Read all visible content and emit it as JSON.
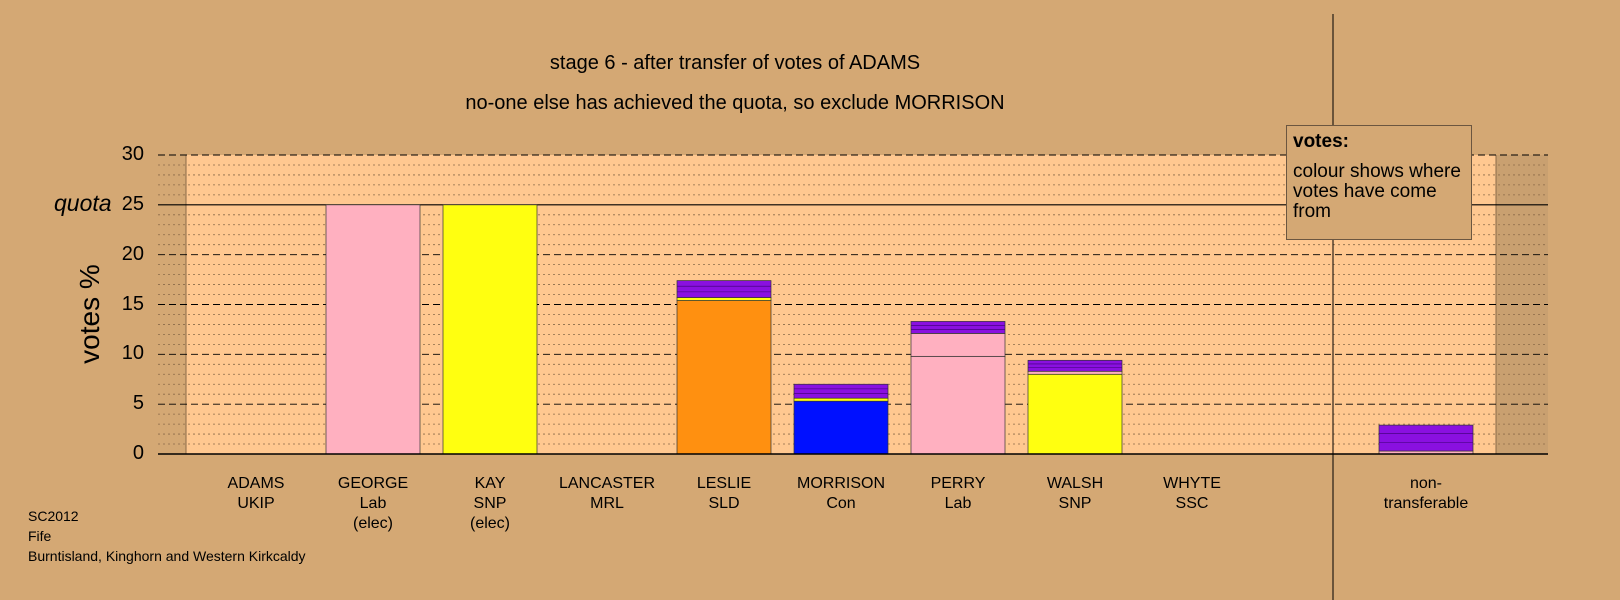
{
  "chart_data": {
    "type": "bar",
    "title": "stage 6 - after transfer of votes of ADAMS",
    "subtitle": "no-one else has achieved the quota, so exclude MORRISON",
    "ylabel": "votes %",
    "ylim": [
      0,
      30
    ],
    "yticks": [
      "0",
      "5",
      "10",
      "15",
      "20",
      "25",
      "30"
    ],
    "quota": 25,
    "quota_label": "quota",
    "categories": [
      {
        "name": "ADAMS",
        "party": "UKIP",
        "note": ""
      },
      {
        "name": "GEORGE",
        "party": "Lab",
        "note": "(elec)"
      },
      {
        "name": "KAY",
        "party": "SNP",
        "note": "(elec)"
      },
      {
        "name": "LANCASTER",
        "party": "MRL",
        "note": ""
      },
      {
        "name": "LESLIE",
        "party": "SLD",
        "note": ""
      },
      {
        "name": "MORRISON",
        "party": "Con",
        "note": ""
      },
      {
        "name": "PERRY",
        "party": "Lab",
        "note": ""
      },
      {
        "name": "WALSH",
        "party": "SNP",
        "note": ""
      },
      {
        "name": "WHYTE",
        "party": "SSC",
        "note": ""
      },
      {
        "name": "non-",
        "party": "transferable",
        "note": ""
      }
    ],
    "segments": [
      [],
      [
        {
          "value": 25.0,
          "color": "#ffb0c0"
        }
      ],
      [
        {
          "value": 25.0,
          "color": "#ffff10"
        }
      ],
      [],
      [
        {
          "value": 15.4,
          "color": "#ff9010"
        },
        {
          "value": 0.3,
          "color": "#ffff10"
        },
        {
          "value": 1.7,
          "color": "#8a10e0"
        }
      ],
      [
        {
          "value": 5.3,
          "color": "#0010ff"
        },
        {
          "value": 0.3,
          "color": "#ffff10"
        },
        {
          "value": 1.4,
          "color": "#8a10e0"
        }
      ],
      [
        {
          "value": 9.8,
          "color": "#ffb0c0"
        },
        {
          "value": 2.3,
          "color": "#ffb0c0"
        },
        {
          "value": 1.2,
          "color": "#8a10e0"
        }
      ],
      [
        {
          "value": 8.0,
          "color": "#ffff10"
        },
        {
          "value": 0.3,
          "color": "#ffb0c0"
        },
        {
          "value": 1.1,
          "color": "#8a10e0"
        }
      ],
      [],
      [
        {
          "value": 0.3,
          "color": "#ffb0c0"
        },
        {
          "value": 2.6,
          "color": "#8a10e0"
        }
      ]
    ],
    "totals": [
      0,
      25.0,
      25.0,
      0,
      17.4,
      7.0,
      13.3,
      9.4,
      0,
      2.9
    ],
    "grid": true,
    "legend": "top-right"
  },
  "legend": {
    "title": "votes:",
    "text": "colour shows where votes have come from"
  },
  "footer": {
    "line1": "SC2012",
    "line2": "Fife",
    "line3": "Burntisland, Kinghorn and Western Kirkcaldy"
  },
  "colors": {
    "background": "#d4a874",
    "plot_area": "#ffc890",
    "grid": "#000000"
  }
}
